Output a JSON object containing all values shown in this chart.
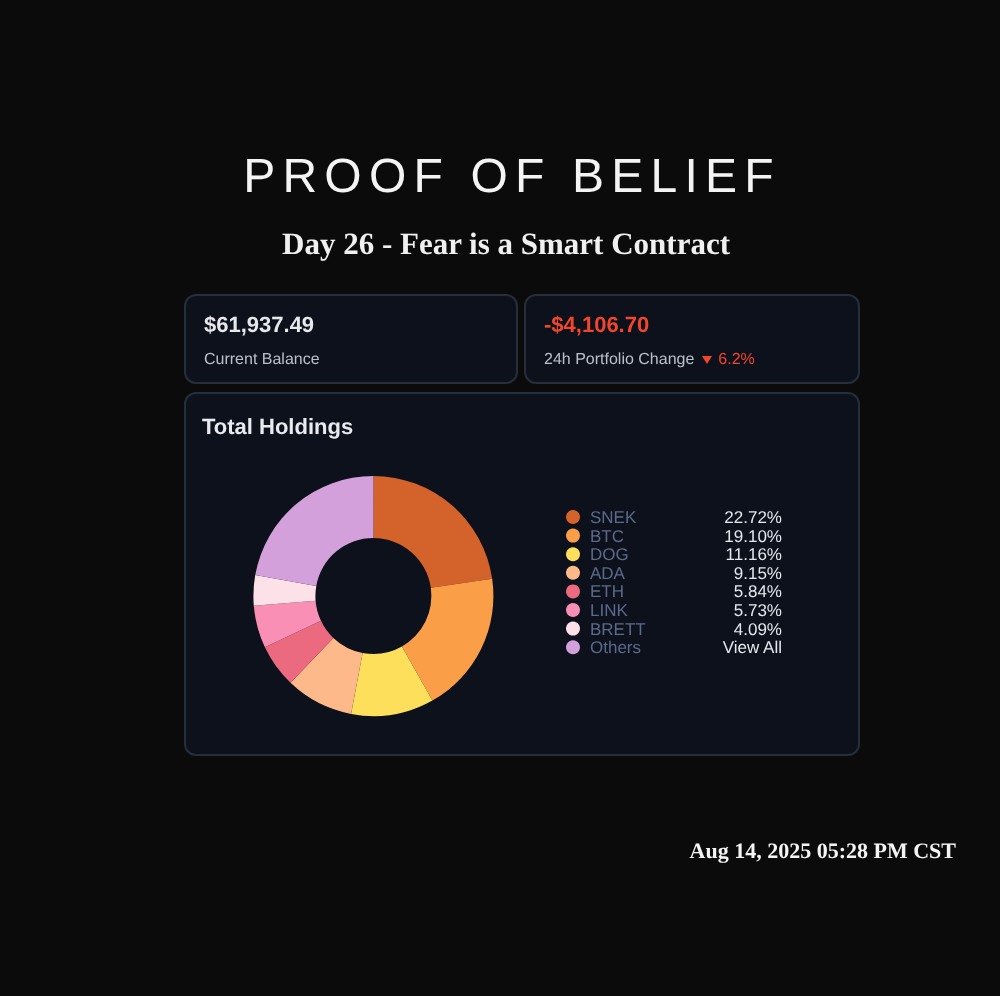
{
  "chart_data": {
    "type": "donut",
    "title": "PROOF OF BELIEF",
    "subtitle": "Day 26 - Fear is a Smart Contract",
    "categories": [
      "SNEK",
      "BTC",
      "DOG",
      "ADA",
      "ETH",
      "LINK",
      "BRETT",
      "Others"
    ],
    "values": [
      22.72,
      19.1,
      11.16,
      9.15,
      5.84,
      5.73,
      4.09,
      22.21
    ],
    "colors": [
      "#d4622b",
      "#fa9f47",
      "#fddf5c",
      "#fdb98a",
      "#ec6a80",
      "#f98fb5",
      "#fde1e8",
      "#d3a0dc"
    ],
    "value_labels": [
      "22.72%",
      "19.10%",
      "11.16%",
      "9.15%",
      "5.84%",
      "5.73%",
      "4.09%",
      "View All"
    ],
    "legend": "right",
    "annotations": [
      "$61,937.49",
      "Current Balance",
      "-$4,106.70",
      "24h Portfolio Change",
      "6.2%",
      "Total Holdings",
      "Aug 14, 2025 05:28 PM CST"
    ]
  }
}
